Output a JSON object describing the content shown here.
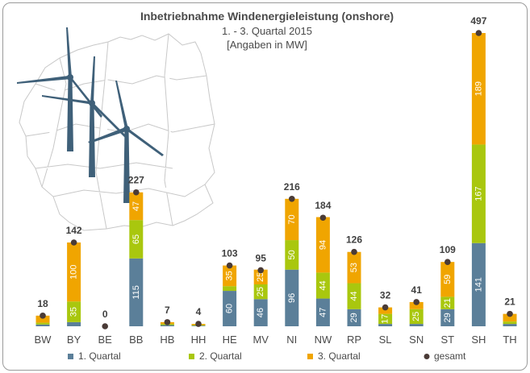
{
  "chart_data": {
    "type": "bar",
    "stacked": true,
    "title": "Inbetriebnahme Windenergieleistung (onshore)",
    "subtitle": "1. - 3. Quartal 2015",
    "unit_note": "[Angaben in MW]",
    "categories": [
      "BW",
      "BY",
      "BE",
      "BB",
      "HB",
      "HH",
      "HE",
      "MV",
      "NI",
      "NW",
      "RP",
      "SL",
      "SN",
      "ST",
      "SH",
      "TH"
    ],
    "series": [
      {
        "name": "1. Quartal",
        "color": "#5b7f99",
        "values": [
          3,
          7,
          0,
          115,
          2,
          1,
          60,
          46,
          96,
          47,
          29,
          4,
          4,
          29,
          141,
          4
        ]
      },
      {
        "name": "2. Quartal",
        "color": "#a9c70e",
        "values": [
          3,
          35,
          0,
          65,
          2,
          1,
          8,
          25,
          50,
          44,
          44,
          17,
          25,
          21,
          167,
          4
        ]
      },
      {
        "name": "3. Quartal",
        "color": "#f0a500",
        "values": [
          12,
          100,
          0,
          47,
          3,
          2,
          35,
          25,
          70,
          94,
          53,
          11,
          12,
          59,
          189,
          13
        ]
      }
    ],
    "totals": {
      "name": "gesamt",
      "color": "#4a3b36",
      "values": [
        18,
        142,
        0,
        227,
        7,
        4,
        103,
        95,
        216,
        184,
        126,
        32,
        41,
        109,
        497,
        21
      ]
    },
    "segment_labels": [
      [
        "",
        "",
        "",
        "115",
        "",
        "",
        "60",
        "46",
        "96",
        "47",
        "29",
        "",
        "",
        "29",
        "141",
        ""
      ],
      [
        "",
        "35",
        "",
        "65",
        "",
        "",
        "",
        "25",
        "50",
        "44",
        "44",
        "17",
        "25",
        "21",
        "167",
        ""
      ],
      [
        "",
        "100",
        "",
        "47",
        "",
        "",
        "35",
        "25",
        "70",
        "94",
        "53",
        "",
        "",
        "59",
        "189",
        ""
      ]
    ],
    "ylim": [
      0,
      497
    ],
    "legend_position": "bottom"
  }
}
